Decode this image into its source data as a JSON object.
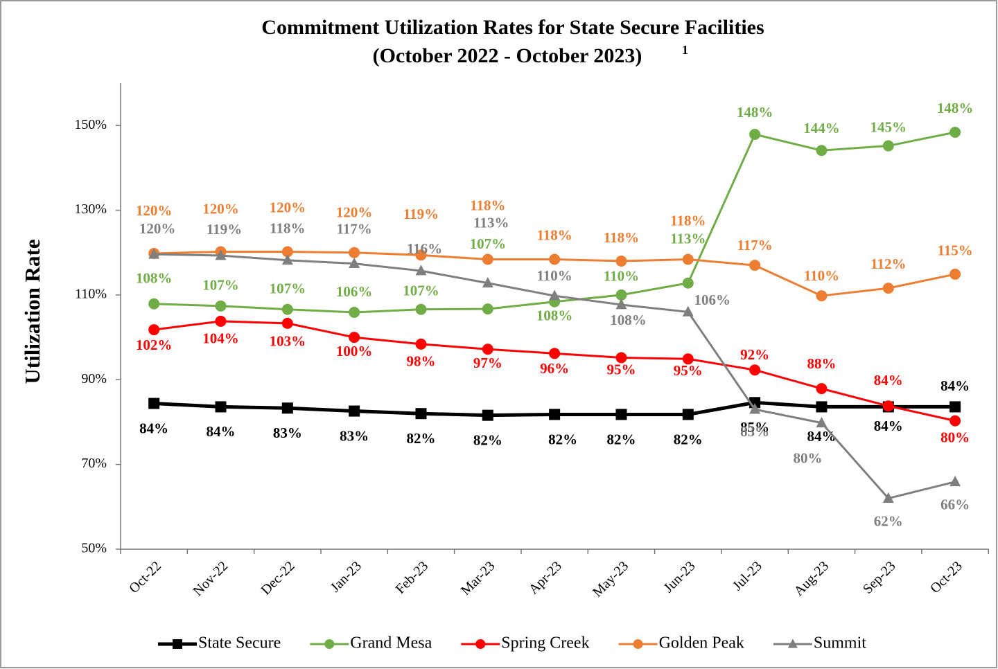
{
  "chart_data": {
    "type": "line",
    "title": "Commitment Utilization Rates for State Secure Facilities",
    "subtitle": "(October 2022 - October 2023)",
    "subtitle_note": "1",
    "y_label": "Utilization Rate",
    "categories": [
      "Oct-22",
      "Nov-22",
      "Dec-22",
      "Jan-23",
      "Feb-23",
      "Mar-23",
      "Apr-23",
      "May-23",
      "Jun-23",
      "Jul-23",
      "Aug-23",
      "Sep-23",
      "Oct-23"
    ],
    "ylim": [
      50,
      160
    ],
    "yticks": [
      {
        "value": 50,
        "label": "50%"
      },
      {
        "value": 70,
        "label": "70%"
      },
      {
        "value": 90,
        "label": "90%"
      },
      {
        "value": 110,
        "label": "110%"
      },
      {
        "value": 130,
        "label": "130%"
      },
      {
        "value": 150,
        "label": "150%"
      }
    ],
    "grid": false,
    "legend": "bottom",
    "series": [
      {
        "name": "State Secure",
        "color": "#000000",
        "marker": "square",
        "values": [
          84.4,
          83.6,
          83.3,
          82.6,
          82.0,
          81.6,
          81.8,
          81.8,
          81.8,
          84.6,
          83.6,
          83.6,
          83.6
        ],
        "value_labels": [
          "84%",
          "84%",
          "83%",
          "83%",
          "82%",
          "82%",
          "82%",
          "82%",
          "82%",
          "85%",
          "84%",
          "84%",
          "84%"
        ]
      },
      {
        "name": "Grand Mesa",
        "color": "#70ad47",
        "marker": "circle",
        "values": [
          107.9,
          107.4,
          106.6,
          105.9,
          106.6,
          106.7,
          108.4,
          110.0,
          112.8,
          147.9,
          144.1,
          145.2,
          148.4
        ],
        "value_labels": [
          "108%",
          "107%",
          "107%",
          "106%",
          "107%",
          "107%",
          "108%",
          "110%",
          "113%",
          "148%",
          "144%",
          "145%",
          "148%"
        ]
      },
      {
        "name": "Spring Creek",
        "color": "#ff0000",
        "marker": "circle",
        "values": [
          101.8,
          103.8,
          103.3,
          100.0,
          98.4,
          97.2,
          96.2,
          95.2,
          94.9,
          92.3,
          87.9,
          83.8,
          80.3
        ],
        "value_labels": [
          "102%",
          "104%",
          "103%",
          "100%",
          "98%",
          "97%",
          "96%",
          "95%",
          "95%",
          "92%",
          "88%",
          "84%",
          "80%"
        ]
      },
      {
        "name": "Golden Peak",
        "color": "#ed7d31",
        "marker": "circle",
        "values": [
          119.8,
          120.2,
          120.2,
          120.0,
          119.4,
          118.4,
          118.4,
          118.0,
          118.4,
          117.0,
          109.8,
          111.6,
          114.9
        ],
        "value_labels": [
          "120%",
          "120%",
          "120%",
          "120%",
          "119%",
          "118%",
          "118%",
          "118%",
          "118%",
          "117%",
          "110%",
          "112%",
          "115%"
        ]
      },
      {
        "name": "Summit",
        "color": "#7f7f7f",
        "marker": "triangle",
        "values": [
          119.6,
          119.3,
          118.2,
          117.4,
          115.7,
          112.8,
          109.8,
          107.7,
          106.0,
          83.0,
          79.8,
          62.0,
          65.9
        ],
        "value_labels": [
          "120%",
          "119%",
          "118%",
          "117%",
          "116%",
          "113%",
          "110%",
          "108%",
          "106%",
          "83%",
          "80%",
          "62%",
          "66%"
        ]
      }
    ]
  }
}
